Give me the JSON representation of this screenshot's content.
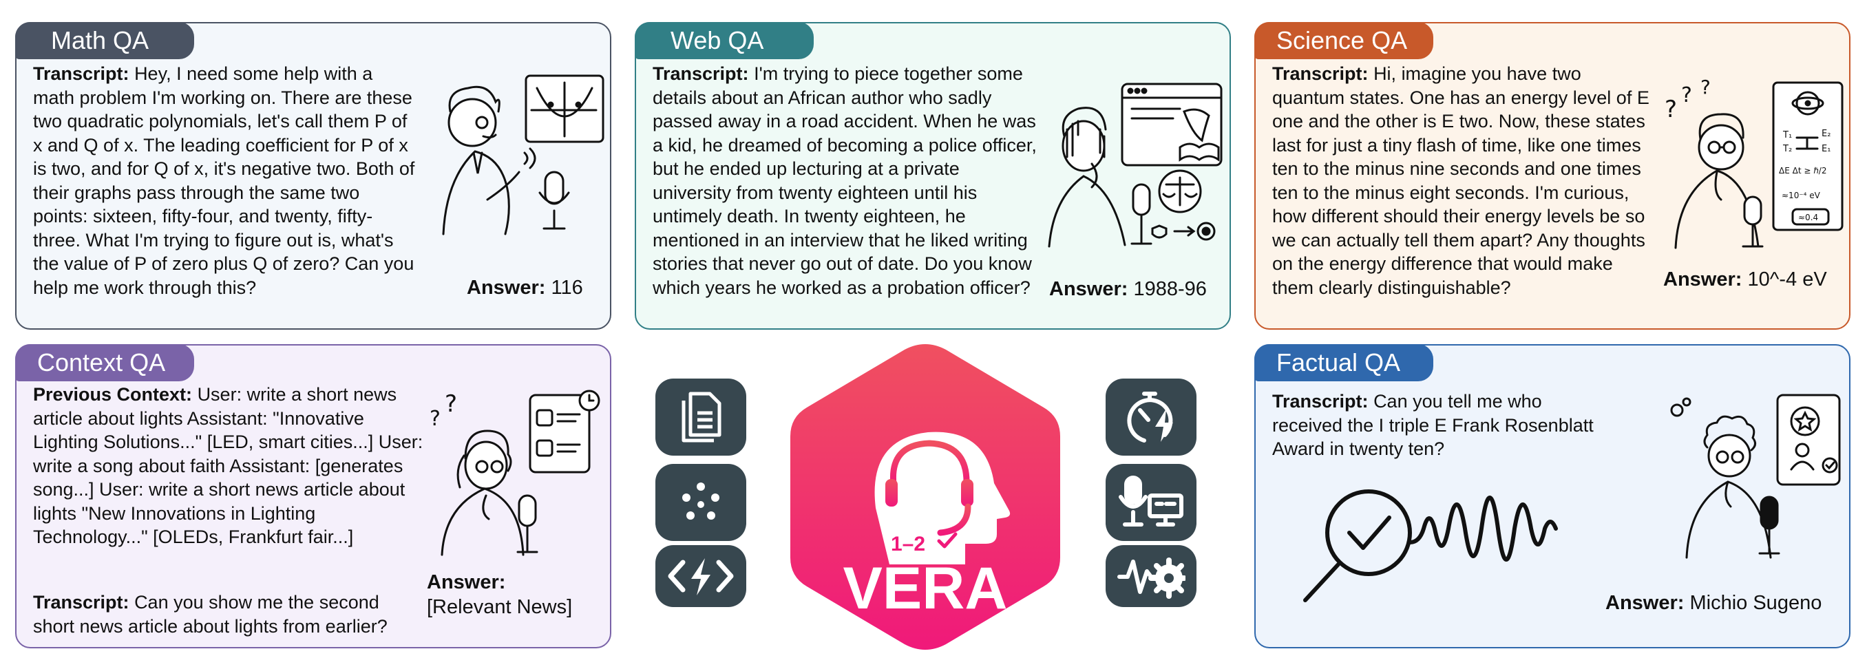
{
  "cards": {
    "math": {
      "title": "Math QA",
      "label": "Transcript:",
      "text": "Hey, I need some help with a math problem I'm working on. There are these two quadratic polynomials, let's call them P of x and Q of x. The leading coefficient for P of x is two, and for Q of x, it's negative two. Both of their graphs pass through the same two points: sixteen, fifty-four, and twenty, fifty-three. What I'm trying to figure out is, what's the value of P of zero plus Q of zero? Can you help me work through this?",
      "answer_label": "Answer:",
      "answer": "116"
    },
    "web": {
      "title": "Web QA",
      "label": "Transcript:",
      "text": "I'm trying to piece together some details about an African author who sadly passed away in a road accident. When he was a kid, he dreamed of becoming a police officer, but he ended up lecturing at a private university from twenty eighteen until his untimely death. In twenty eighteen, he mentioned in an interview that he liked writing stories that never go out of date. Do you know which years he worked as a probation officer?",
      "answer_label": "Answer:",
      "answer": "1988-96"
    },
    "science": {
      "title": "Science QA",
      "label": "Transcript:",
      "text": "Hi, imagine you have two quantum states. One has an energy level of E one and the other is E two. Now, these states last for just a tiny flash of time, like one times ten to the minus nine seconds and one times ten to the minus eight seconds. I'm curious, how different should their energy levels be so we can actually tell them apart? Any thoughts on the energy difference that would make them clearly distinguishable?",
      "answer_label": "Answer:",
      "answer": "10^-4 eV"
    },
    "context": {
      "title": "Context QA",
      "prev_label": "Previous Context:",
      "prev_text": "User: write a short news article about lights Assistant: \"Innovative Lighting Solutions...\" [LED, smart cities...] User: write a song about faith Assistant: [generates song...] User: write a short news article about lights  \"New Innovations in Lighting Technology...\" [OLEDs, Frankfurt fair...]",
      "label": "Transcript:",
      "text": "Can you show me the second short news article about lights from earlier?",
      "answer_label": "Answer:",
      "answer": "[Relevant News]"
    },
    "factual": {
      "title": "Factual QA",
      "label": "Transcript:",
      "text": "Can you tell me who received the I triple E Frank Rosenblatt Award in twenty ten?",
      "answer_label": "Answer:",
      "answer": "Michio Sugeno"
    }
  },
  "logo": {
    "name": "VERA",
    "badge": "1–2"
  },
  "illustration_text": {
    "science_e2": "E₂",
    "science_t1": "T₁",
    "science_t2": "T₂",
    "science_e1": "E₁",
    "science_formula": "ΔE Δt ≥ ℏ/2",
    "science_approx": "≈10⁻⁴ eV",
    "science_box": "≈0.4"
  },
  "colors": {
    "math": "#4a5363",
    "web": "#317f86",
    "science": "#c8592a",
    "context": "#7a63a8",
    "factual": "#2f68ad",
    "logo_top": "#f05060",
    "logo_bottom": "#f0197a",
    "icon_tile": "#37474f"
  },
  "left_icons": [
    "document-icon",
    "dots-pattern-icon",
    "code-bolt-icon"
  ],
  "right_icons": [
    "timer-bolt-icon",
    "mic-computer-icon",
    "waveform-gear-icon"
  ]
}
